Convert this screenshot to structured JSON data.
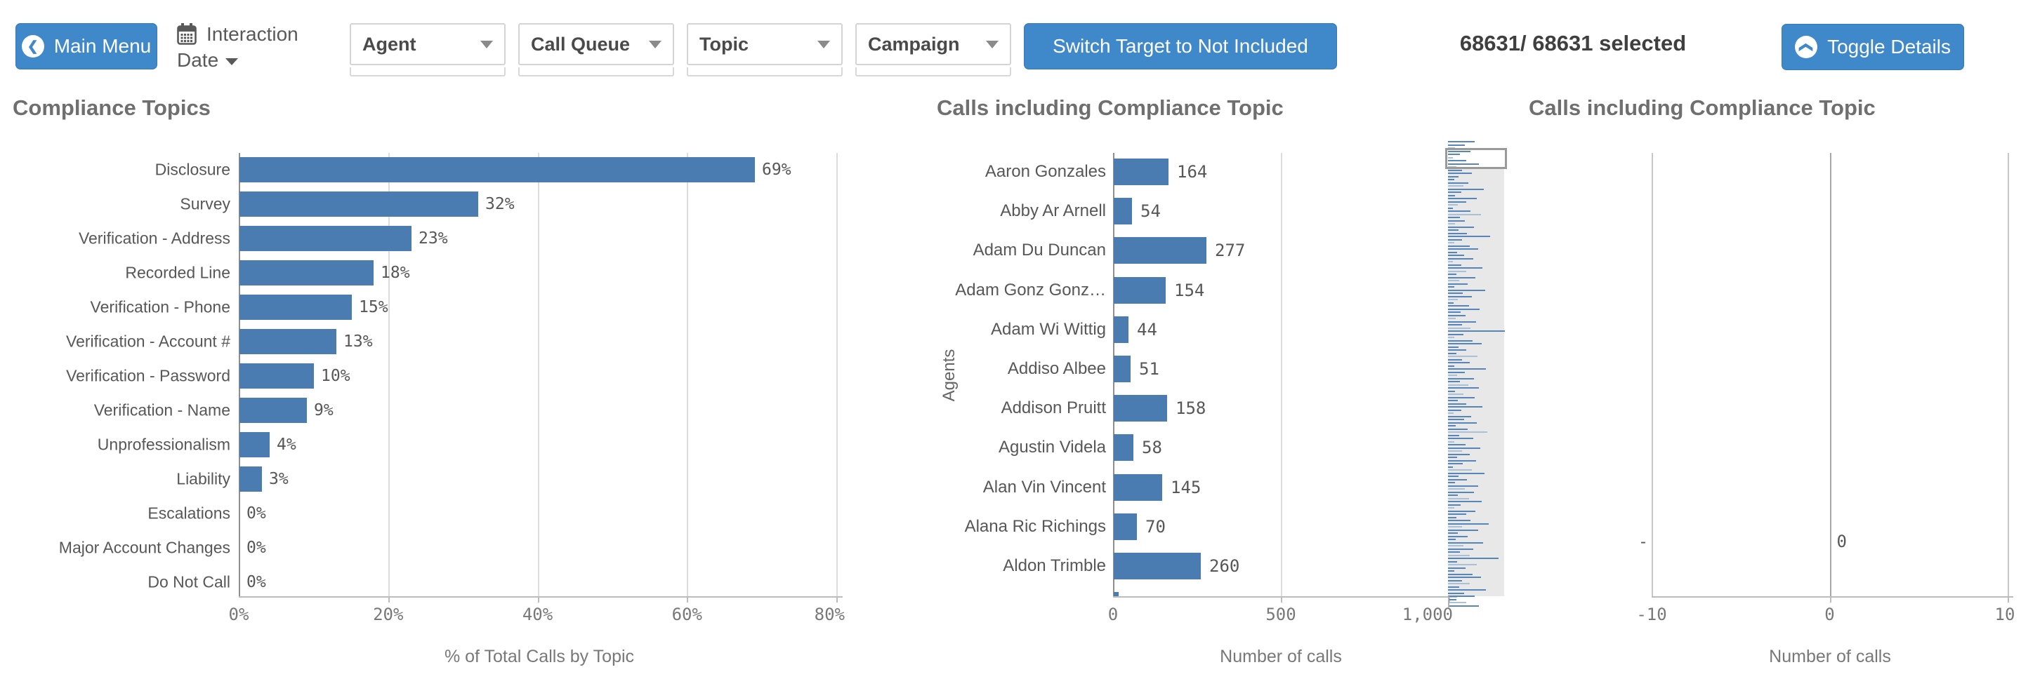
{
  "toolbar": {
    "main_menu_label": "Main Menu",
    "interaction_date_line1": "Interaction",
    "interaction_date_line2": "Date",
    "filters": [
      {
        "label": "Agent"
      },
      {
        "label": "Call Queue"
      },
      {
        "label": "Topic"
      },
      {
        "label": "Campaign"
      }
    ],
    "switch_target_label": "Switch Target to Not Included",
    "selected_count": "68631/ 68631 selected",
    "toggle_details_label": "Toggle Details"
  },
  "colors": {
    "button_blue": "#3f88c9",
    "bar_blue": "#4a7cb2",
    "bar_blue_light": "#a4bcd6",
    "title_gray": "#6f6f6f"
  },
  "chart_data": [
    {
      "type": "bar",
      "orientation": "horizontal",
      "title": "Compliance Topics",
      "categories": [
        "Disclosure",
        "Survey",
        "Verification - Address",
        "Recorded Line",
        "Verification - Phone",
        "Verification - Account #",
        "Verification - Password",
        "Verification - Name",
        "Unprofessionalism",
        "Liability",
        "Escalations",
        "Major Account Changes",
        "Do Not Call"
      ],
      "values": [
        69,
        32,
        23,
        18,
        15,
        13,
        10,
        9,
        4,
        3,
        0,
        0,
        0
      ],
      "value_labels": [
        "69%",
        "32%",
        "23%",
        "18%",
        "15%",
        "13%",
        "10%",
        "9%",
        "4%",
        "3%",
        "0%",
        "0%",
        "0%"
      ],
      "xlabel": "% of Total Calls by Topic",
      "xticks": [
        {
          "label": "0%",
          "value": 0
        },
        {
          "label": "20%",
          "value": 20
        },
        {
          "label": "40%",
          "value": 40
        },
        {
          "label": "60%",
          "value": 60
        },
        {
          "label": "80%",
          "value": 80
        }
      ],
      "xlim": [
        0,
        80
      ],
      "grid": true,
      "legend": false
    },
    {
      "type": "bar",
      "orientation": "horizontal",
      "title": "Calls including Compliance Topic",
      "ylabel": "Agents",
      "xlabel": "Number of calls",
      "categories": [
        "Aaron Gonzales",
        "Abby Ar Arnell",
        "Adam Du Duncan",
        "Adam Gonz Gonz…",
        "Adam Wi Wittig",
        "Addiso Albee",
        "Addison Pruitt",
        "Agustin Videla",
        "Alan Vin Vincent",
        "Alana Ric Richings",
        "Aldon Trimble"
      ],
      "values": [
        164,
        54,
        277,
        154,
        44,
        51,
        158,
        58,
        145,
        70,
        260
      ],
      "value_labels": [
        "164",
        "54",
        "277",
        "154",
        "44",
        "51",
        "158",
        "58",
        "145",
        "70",
        "260"
      ],
      "partial_next_value": 14,
      "xticks": [
        {
          "label": "0",
          "value": 0
        },
        {
          "label": "500",
          "value": 500
        },
        {
          "label": "1,000",
          "value": 1000
        }
      ],
      "xlim": [
        0,
        1000
      ],
      "grid": true,
      "legend": false,
      "scrollbar_minimap": {
        "viewport_position": "top",
        "bars_pct": [
          45,
          28,
          12,
          38,
          20,
          8,
          30,
          52,
          14,
          24,
          40,
          18,
          10,
          34,
          26,
          60,
          22,
          12,
          48,
          30,
          16,
          8,
          38,
          55,
          20,
          28,
          12,
          44,
          18,
          32,
          70,
          24,
          10,
          36,
          50,
          15,
          27,
          42,
          8,
          22,
          58,
          30,
          14,
          46,
          19,
          33,
          11,
          62,
          25,
          40,
          17,
          9,
          35,
          53,
          21,
          29,
          13,
          47,
          23,
          38,
          95,
          26,
          11,
          41,
          56,
          18,
          31,
          14,
          49,
          24,
          37,
          10,
          64,
          28,
          15,
          43,
          20,
          34,
          52,
          12,
          26,
          45,
          17,
          30,
          58,
          22,
          9,
          39,
          27,
          48,
          13,
          33,
          66,
          19,
          42,
          11,
          29,
          54,
          23,
          36,
          15,
          47,
          25,
          8,
          40,
          61,
          18,
          32,
          12,
          50,
          28,
          44,
          16,
          35,
          57,
          21,
          10,
          46,
          30,
          14,
          38,
          68,
          24,
          51,
          17,
          33,
          13,
          59,
          26,
          42,
          20,
          36,
          85,
          15,
          48,
          29,
          11,
          41,
          55,
          23,
          37,
          19,
          63,
          27,
          45,
          14,
          31,
          52
        ]
      }
    },
    {
      "type": "bar",
      "orientation": "horizontal",
      "title": "Calls including Compliance Topic",
      "categories": [
        "-"
      ],
      "values": [
        0
      ],
      "value_labels": [
        "0"
      ],
      "xlabel": "Number of calls",
      "xticks": [
        {
          "label": "-10",
          "value": -10
        },
        {
          "label": "0",
          "value": 0
        },
        {
          "label": "10",
          "value": 10
        }
      ],
      "xlim": [
        -10,
        10
      ],
      "grid": true,
      "legend": false
    }
  ]
}
